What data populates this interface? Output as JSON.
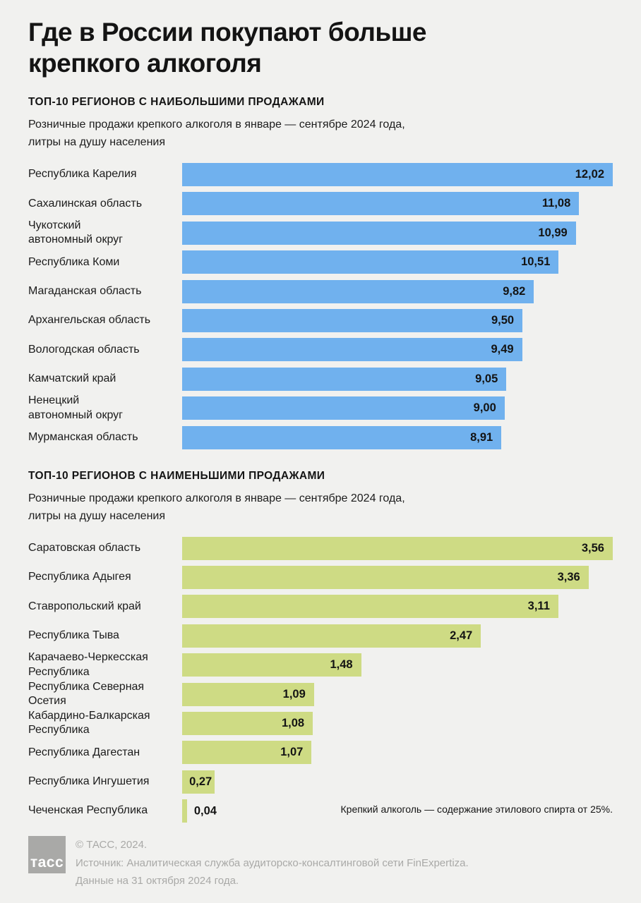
{
  "page": {
    "title": "Где в России покупают больше крепкого алкоголя",
    "background_color": "#f1f1ef",
    "footnote": "Крепкий алкоголь — содержание этилового спирта от 25%."
  },
  "colors": {
    "bar_blue": "#70b1ee",
    "bar_green": "#cedb84",
    "text_dark": "#141414",
    "muted_gray": "#a9a9a7"
  },
  "chart_data": [
    {
      "type": "bar",
      "orientation": "horizontal",
      "title": "ТОП-10 РЕГИОНОВ С НАИБОЛЬШИМИ ПРОДАЖАМИ",
      "subtitle": "Розничные продажи крепкого алкоголя в январе — сентябре 2024 года,\nлитры на душу населения",
      "bar_color": "#70b1ee",
      "value_label_position": "inside-end",
      "grid": false,
      "legend": false,
      "xlim": [
        0,
        12.02
      ],
      "categories": [
        "Республика Карелия",
        "Сахалинская область",
        "Чукотский\nавтономный округ",
        "Республика Коми",
        "Магаданская область",
        "Архангельская область",
        "Вологодская область",
        "Камчатский край",
        "Ненецкий\nавтономный округ",
        "Мурманская область"
      ],
      "values": [
        12.02,
        11.08,
        10.99,
        10.51,
        9.82,
        9.5,
        9.49,
        9.05,
        9.0,
        8.91
      ],
      "value_labels": [
        "12,02",
        "11,08",
        "10,99",
        "10,51",
        "9,82",
        "9,50",
        "9,49",
        "9,05",
        "9,00",
        "8,91"
      ]
    },
    {
      "type": "bar",
      "orientation": "horizontal",
      "title": "ТОП-10 РЕГИОНОВ С НАИМЕНЬШИМИ ПРОДАЖАМИ",
      "subtitle": "Розничные продажи крепкого алкоголя в январе — сентябре 2024 года,\nлитры на душу населения",
      "bar_color": "#cedb84",
      "value_label_position": "inside-end",
      "grid": false,
      "legend": false,
      "xlim": [
        0,
        3.56
      ],
      "categories": [
        "Саратовская область",
        "Республика Адыгея",
        "Ставропольский край",
        "Республика Тыва",
        "Карачаево-Черкесская\nРеспублика",
        "Республика Северная\nОсетия",
        "Кабардино-Балкарская\nРеспублика",
        "Республика Дагестан",
        "Республика Ингушетия",
        "Чеченская Республика"
      ],
      "values": [
        3.56,
        3.36,
        3.11,
        2.47,
        1.48,
        1.09,
        1.08,
        1.07,
        0.27,
        0.04
      ],
      "value_labels": [
        "3,56",
        "3,36",
        "3,11",
        "2,47",
        "1,48",
        "1,09",
        "1,08",
        "1,07",
        "0,27",
        "0,04"
      ]
    }
  ],
  "footer": {
    "logo_text": "тасс",
    "copyright": "© ТАСС, 2024.",
    "source": "Источник: Аналитическая служба аудиторско-консалтинговой сети FinExpertiza.",
    "data_note": "Данные на 31 октября 2024 года."
  }
}
